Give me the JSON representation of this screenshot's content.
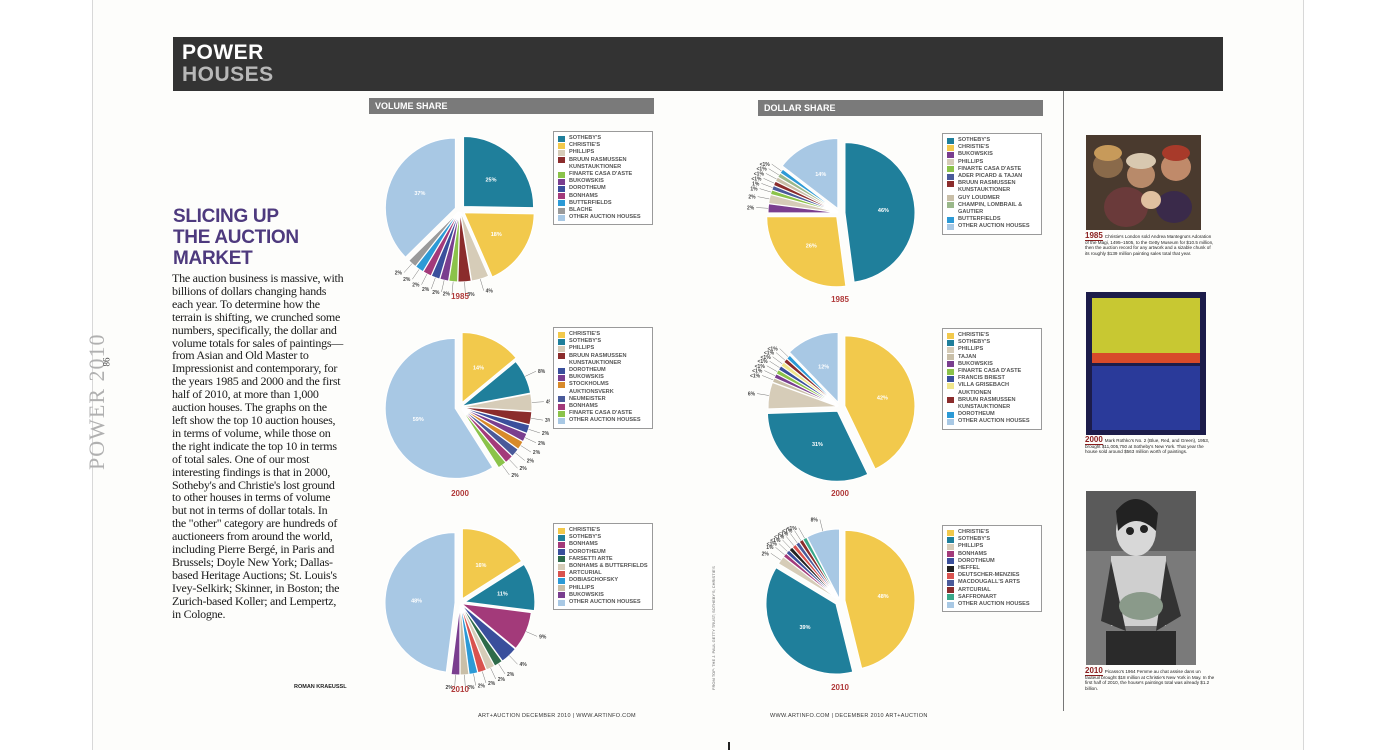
{
  "banner": {
    "line1": "POWER",
    "line2": "HOUSES"
  },
  "side_label": "POWER 2010",
  "page_number": "86",
  "article": {
    "headline": [
      "SLICING UP",
      "THE AUCTION",
      "MARKET"
    ],
    "body": "The auction business is massive, with billions of dollars changing hands each year. To determine how the terrain is shifting, we crunched some numbers, specifically, the dollar and volume totals for sales of paintings—from Asian and Old Master to Impressionist and contemporary, for the years 1985 and 2000 and the first half of 2010, at more than 1,000 auction houses. The graphs on the left show the top 10 auction houses, in terms of volume, while those on the right indicate the top 10 in terms of total sales. One of our most interesting findings is that in 2000, Sotheby's and Christie's lost ground to other houses in terms of volume but not in terms of dollar totals. In the \"other\" category are hundreds of auctioneers from around the world, including Pierre Bergé, in Paris and Brussels; Doyle New York; Dallas-based Heritage Auctions; St. Louis's Ivey-Selkirk; Skinner, in Boston; the Zurich-based Koller; and Lempertz, in Cologne.",
    "byline": "ROMAN KRAEUSSL"
  },
  "sections": {
    "volume": "VOLUME SHARE",
    "dollar": "DOLLAR SHARE"
  },
  "chart_data": [
    {
      "type": "pie",
      "section": "VOLUME SHARE",
      "year": "1985",
      "slices": [
        {
          "label": "SOTHEBY'S",
          "value": 25,
          "text": "25%",
          "color": "#1f7f9b"
        },
        {
          "label": "CHRISTIE'S",
          "value": 18,
          "text": "18%",
          "color": "#f2c94c"
        },
        {
          "label": "PHILLIPS",
          "value": 4,
          "text": "4%",
          "color": "#d6ccb8"
        },
        {
          "label": "BRUUN RASMUSSEN KUNSTAUKTIONER",
          "value": 3,
          "text": "3%",
          "color": "#8b2c2c"
        },
        {
          "label": "FINARTE CASA D'ASTE",
          "value": 2,
          "text": "2%",
          "color": "#8bc34a"
        },
        {
          "label": "BUKOWSKIS",
          "value": 2,
          "text": "2%",
          "color": "#7a3e8f"
        },
        {
          "label": "DOROTHEUM",
          "value": 2,
          "text": "2%",
          "color": "#3a4f9c"
        },
        {
          "label": "BONHAMS",
          "value": 2,
          "text": "2%",
          "color": "#a33a7a"
        },
        {
          "label": "BUTTERFIELDS",
          "value": 2,
          "text": "2%",
          "color": "#2c9ad6"
        },
        {
          "label": "BLACHE",
          "value": 2,
          "text": "2%",
          "color": "#9a9a9a"
        },
        {
          "label": "OTHER AUCTION HOUSES",
          "value": 37,
          "text": "37%",
          "color": "#a8c8e4"
        }
      ]
    },
    {
      "type": "pie",
      "section": "VOLUME SHARE",
      "year": "2000",
      "slices": [
        {
          "label": "CHRISTIE'S",
          "value": 14,
          "text": "14%",
          "color": "#f2c94c"
        },
        {
          "label": "SOTHEBY'S",
          "value": 8,
          "text": "8%",
          "color": "#1f7f9b"
        },
        {
          "label": "PHILLIPS",
          "value": 4,
          "text": "4%",
          "color": "#d6ccb8"
        },
        {
          "label": "BRUUN RASMUSSEN KUNSTAUKTIONER",
          "value": 3,
          "text": "3%",
          "color": "#8b2c2c"
        },
        {
          "label": "DOROTHEUM",
          "value": 2,
          "text": "2%",
          "color": "#3a4f9c"
        },
        {
          "label": "BUKOWSKIS",
          "value": 2,
          "text": "2%",
          "color": "#7a3e8f"
        },
        {
          "label": "STOCKHOLMS AUKTIONSVERK",
          "value": 2,
          "text": "2%",
          "color": "#d88a2a"
        },
        {
          "label": "NEUMEISTER",
          "value": 2,
          "text": "2%",
          "color": "#4a5a9a"
        },
        {
          "label": "BONHAMS",
          "value": 2,
          "text": "2%",
          "color": "#a33a7a"
        },
        {
          "label": "FINARTE CASA D'ASTE",
          "value": 2,
          "text": "2%",
          "color": "#8bc34a"
        },
        {
          "label": "OTHER AUCTION HOUSES",
          "value": 59,
          "text": "59%",
          "color": "#a8c8e4"
        }
      ]
    },
    {
      "type": "pie",
      "section": "VOLUME SHARE",
      "year": "2010",
      "slices": [
        {
          "label": "CHRISTIE'S",
          "value": 16,
          "text": "16%",
          "color": "#f2c94c"
        },
        {
          "label": "SOTHEBY'S",
          "value": 11,
          "text": "11%",
          "color": "#1f7f9b"
        },
        {
          "label": "BONHAMS",
          "value": 9,
          "text": "9%",
          "color": "#a33a7a"
        },
        {
          "label": "DOROTHEUM",
          "value": 4,
          "text": "4%",
          "color": "#3a4f9c"
        },
        {
          "label": "FARSETTI ARTE",
          "value": 2,
          "text": "2%",
          "color": "#2e6b4a"
        },
        {
          "label": "BONHAMS & BUTTERFIELDS",
          "value": 2,
          "text": "2%",
          "color": "#d6ccb8"
        },
        {
          "label": "ARTCURIAL",
          "value": 2,
          "text": "2%",
          "color": "#d9534f"
        },
        {
          "label": "DOBIASCHOFSKY",
          "value": 2,
          "text": "2%",
          "color": "#2c9ad6"
        },
        {
          "label": "PHILLIPS",
          "value": 2,
          "text": "2%",
          "color": "#c9bfa8"
        },
        {
          "label": "BUKOWSKIS",
          "value": 2,
          "text": "2%",
          "color": "#7a3e8f"
        },
        {
          "label": "OTHER AUCTION HOUSES",
          "value": 48,
          "text": "48%",
          "color": "#a8c8e4"
        }
      ]
    },
    {
      "type": "pie",
      "section": "DOLLAR SHARE",
      "year": "1985",
      "slices": [
        {
          "label": "SOTHEBY'S",
          "value": 46,
          "text": "46%",
          "color": "#1f7f9b"
        },
        {
          "label": "CHRISTIE'S",
          "value": 26,
          "text": "26%",
          "color": "#f2c94c"
        },
        {
          "label": "BUKOWSKIS",
          "value": 2,
          "text": "2%",
          "color": "#7a3e8f"
        },
        {
          "label": "PHILLIPS",
          "value": 2,
          "text": "2%",
          "color": "#d6ccb8"
        },
        {
          "label": "FINARTE CASA D'ASTE",
          "value": 1,
          "text": "1%",
          "color": "#8bc34a"
        },
        {
          "label": "ADER PICARD & TAJAN",
          "value": 1,
          "text": "1%",
          "color": "#4a5a9a"
        },
        {
          "label": "BRUUN RASMUSSEN KUNSTAUKTIONER",
          "value": 1,
          "text": "<1%",
          "color": "#8b2c2c"
        },
        {
          "label": "GUY LOUDMER",
          "value": 1,
          "text": "<1%",
          "color": "#c9bfa8"
        },
        {
          "label": "CHAMPIN, LOMBRAIL & GAUTIER",
          "value": 1,
          "text": "<1%",
          "color": "#9ab88a"
        },
        {
          "label": "BUTTERFIELDS",
          "value": 1,
          "text": "<1%",
          "color": "#2c9ad6"
        },
        {
          "label": "OTHER AUCTION HOUSES",
          "value": 14,
          "text": "14%",
          "color": "#a8c8e4"
        }
      ]
    },
    {
      "type": "pie",
      "section": "DOLLAR SHARE",
      "year": "2000",
      "slices": [
        {
          "label": "CHRISTIE'S",
          "value": 42,
          "text": "42%",
          "color": "#f2c94c"
        },
        {
          "label": "SOTHEBY'S",
          "value": 31,
          "text": "31%",
          "color": "#1f7f9b"
        },
        {
          "label": "PHILLIPS",
          "value": 6,
          "text": "6%",
          "color": "#d6ccb8"
        },
        {
          "label": "TAJAN",
          "value": 1,
          "text": "<1%",
          "color": "#c9bfa8"
        },
        {
          "label": "BUKOWSKIS",
          "value": 1,
          "text": "<1%",
          "color": "#7a3e8f"
        },
        {
          "label": "FINARTE CASA D'ASTE",
          "value": 1,
          "text": "<1%",
          "color": "#8bc34a"
        },
        {
          "label": "FRANCIS BRIEST",
          "value": 1,
          "text": "<1%",
          "color": "#3a4f9c"
        },
        {
          "label": "VILLA GRISEBACH AUKTIONEN",
          "value": 1,
          "text": "<1%",
          "color": "#f0e68c"
        },
        {
          "label": "BRUUN RASMUSSEN KUNSTAUKTIONER",
          "value": 1,
          "text": "<1%",
          "color": "#8b2c2c"
        },
        {
          "label": "DOROTHEUM",
          "value": 1,
          "text": "<1%",
          "color": "#2c9ad6"
        },
        {
          "label": "OTHER AUCTION HOUSES",
          "value": 12,
          "text": "12%",
          "color": "#a8c8e4"
        }
      ]
    },
    {
      "type": "pie",
      "section": "DOLLAR SHARE",
      "year": "2010",
      "slices": [
        {
          "label": "CHRISTIE'S",
          "value": 48,
          "text": "48%",
          "color": "#f2c94c"
        },
        {
          "label": "SOTHEBY'S",
          "value": 39,
          "text": "39%",
          "color": "#1f7f9b"
        },
        {
          "label": "PHILLIPS",
          "value": 2,
          "text": "2%",
          "color": "#d6ccb8"
        },
        {
          "label": "BONHAMS",
          "value": 1,
          "text": "1%",
          "color": "#a33a7a"
        },
        {
          "label": "DOROTHEUM",
          "value": 1,
          "text": "<1%",
          "color": "#3a4f9c"
        },
        {
          "label": "HEFFEL",
          "value": 1,
          "text": "<1%",
          "color": "#222222"
        },
        {
          "label": "DEUTSCHER-MENZIES",
          "value": 1,
          "text": "<1%",
          "color": "#d9534f"
        },
        {
          "label": "MACDOUGALL'S ARTS",
          "value": 1,
          "text": "<1%",
          "color": "#4a5a9a"
        },
        {
          "label": "ARTCURIAL",
          "value": 1,
          "text": "<1%",
          "color": "#8b2c2c"
        },
        {
          "label": "SAFFRONART",
          "value": 1,
          "text": "<1%",
          "color": "#3aa88a"
        },
        {
          "label": "OTHER AUCTION HOUSES",
          "value": 8,
          "text": "8%",
          "color": "#a8c8e4"
        }
      ]
    }
  ],
  "captions": [
    {
      "year": "1985",
      "text": "Christie's London sold Andrea Mantegna's Adoration of the Magi, 1495–1505, to the Getty Museum for $10.5 million, then the auction record for any artwork and a sizable chunk of its roughly $139 million painting sales total that year."
    },
    {
      "year": "2000",
      "text": "Mark Rothko's No. 2 (Blue, Red, and Green), 1953, brought $11,005,750 at Sotheby's New York. That year the house sold around $563 million worth of paintings."
    },
    {
      "year": "2010",
      "text": "Picasso's 1964 Femme au chat assise dans un fauteuil brought $18 million at Christie's New York in May. In the first half of 2010, the house's paintings total was already $1.2 billion."
    }
  ],
  "footer": {
    "left": "ART+AUCTION DECEMBER 2010 | WWW.ARTINFO.COM",
    "right": "WWW.ARTINFO.COM | DECEMBER 2010 ART+AUCTION"
  },
  "photo_credit": "FROM TOP: THE J. PAUL GETTY TRUST; SOTHEBY'S; CHRISTIE'S"
}
